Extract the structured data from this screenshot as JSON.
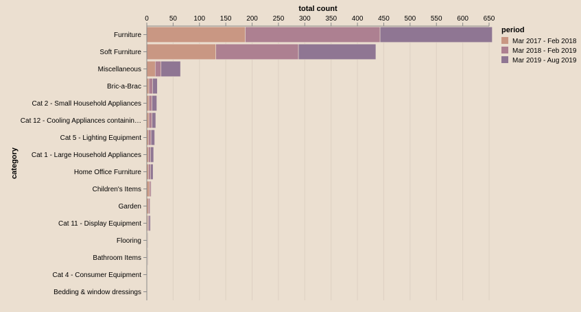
{
  "chart_data": {
    "type": "bar",
    "orientation": "horizontal",
    "stacked": true,
    "xlabel": "total count",
    "ylabel": "category",
    "xlim": [
      0,
      650
    ],
    "xticks": [
      0,
      50,
      100,
      150,
      200,
      250,
      300,
      350,
      400,
      450,
      500,
      550,
      600,
      650
    ],
    "grid": true,
    "legend_title": "period",
    "legend_position": "right",
    "categories": [
      "Furniture",
      "Soft Furniture",
      "Miscellaneous",
      "Bric-a-Brac",
      "Cat 2 - Small Household Appliances",
      "Cat 12 - Cooling Appliances containin…",
      "Cat 5 - Lighting Equipment",
      "Cat 1 - Large Household Appliances",
      "Home Office Furniture",
      "Children's Items",
      "Garden",
      "Cat 11 - Display Equipment",
      "Flooring",
      "Bathroom Items",
      "Cat 4 - Consumer Equipment",
      "Bedding & window dressings"
    ],
    "series": [
      {
        "name": "Mar 2017 - Feb 2018",
        "color": "#c99783",
        "values": [
          187,
          131,
          16,
          4,
          4,
          4,
          3,
          3,
          3,
          5,
          3,
          2,
          1,
          1,
          1,
          0.5
        ]
      },
      {
        "name": "Mar 2018 - Feb 2019",
        "color": "#ad8091",
        "values": [
          256,
          157,
          11,
          7,
          6,
          6,
          5,
          4,
          4,
          3,
          3,
          2,
          1,
          1,
          0.5,
          0.5
        ]
      },
      {
        "name": "Mar 2019 - Aug 2019",
        "color": "#8f7693",
        "values": [
          213,
          147,
          37,
          9,
          9,
          7,
          7,
          6,
          5,
          1,
          1,
          3,
          1,
          1,
          0.5,
          0.5
        ]
      }
    ]
  }
}
